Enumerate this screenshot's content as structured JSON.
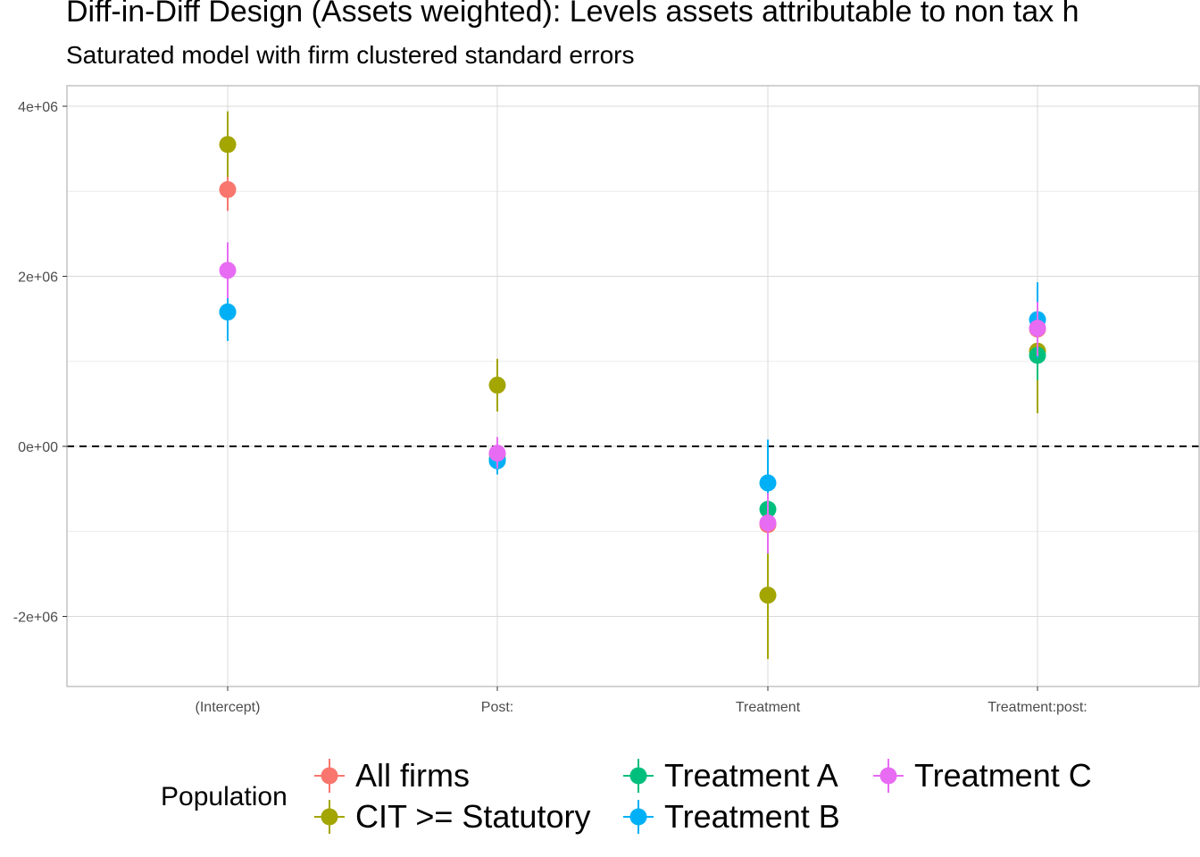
{
  "chart_data": {
    "type": "scatter",
    "title": "Diff-in-Diff Design (Assets weighted): Levels assets attributable to non tax h",
    "subtitle": "Saturated model with firm clustered standard errors",
    "xlabel": "",
    "ylabel": "",
    "categories": [
      "(Intercept)",
      "Post:",
      "Treatment",
      "Treatment:post:"
    ],
    "ylim": [
      -2800000,
      4000000
    ],
    "yticks": [
      -2000000,
      0,
      2000000,
      4000000
    ],
    "ytick_labels": [
      "-2e+06",
      "0e+00",
      "2e+06",
      "4e+06"
    ],
    "reference_line": 0,
    "grid": true,
    "legend": {
      "title": "Population",
      "placement": "bottom"
    },
    "series": [
      {
        "name": "All firms",
        "color": "#F8766D",
        "values": [
          3020000,
          -90000,
          -920000,
          1380000
        ],
        "lower": [
          2770000,
          -270000,
          -1250000,
          1050000
        ],
        "upper": [
          3270000,
          90000,
          -590000,
          1700000
        ]
      },
      {
        "name": "CIT >= Statutory",
        "color": "#A3A500",
        "values": [
          3550000,
          720000,
          -1750000,
          1120000
        ],
        "lower": [
          3170000,
          410000,
          -2500000,
          390000
        ],
        "upper": [
          3940000,
          1030000,
          -1000000,
          1850000
        ]
      },
      {
        "name": "Treatment A",
        "color": "#00BF7D",
        "values": [
          1580000,
          -150000,
          -740000,
          1070000
        ],
        "lower": [
          1270000,
          -320000,
          -1080000,
          780000
        ],
        "upper": [
          1890000,
          20000,
          -400000,
          1360000
        ]
      },
      {
        "name": "Treatment B",
        "color": "#00B0F6",
        "values": [
          1580000,
          -170000,
          -430000,
          1490000
        ],
        "lower": [
          1240000,
          -330000,
          -950000,
          1040000
        ],
        "upper": [
          1920000,
          0,
          80000,
          1930000
        ]
      },
      {
        "name": "Treatment C",
        "color": "#E76BF3",
        "values": [
          2070000,
          -80000,
          -900000,
          1390000
        ],
        "lower": [
          1740000,
          -260000,
          -1260000,
          1060000
        ],
        "upper": [
          2400000,
          110000,
          -550000,
          1700000
        ]
      }
    ]
  }
}
